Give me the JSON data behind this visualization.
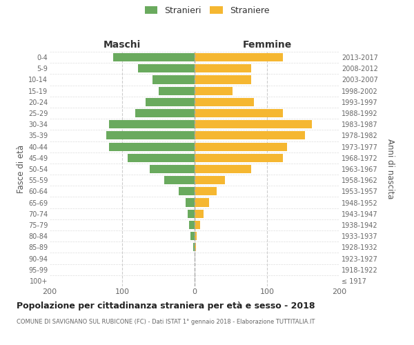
{
  "age_groups": [
    "100+",
    "95-99",
    "90-94",
    "85-89",
    "80-84",
    "75-79",
    "70-74",
    "65-69",
    "60-64",
    "55-59",
    "50-54",
    "45-49",
    "40-44",
    "35-39",
    "30-34",
    "25-29",
    "20-24",
    "15-19",
    "10-14",
    "5-9",
    "0-4"
  ],
  "birth_years": [
    "≤ 1917",
    "1918-1922",
    "1923-1927",
    "1928-1932",
    "1933-1937",
    "1938-1942",
    "1943-1947",
    "1948-1952",
    "1953-1957",
    "1958-1962",
    "1963-1967",
    "1968-1972",
    "1973-1977",
    "1978-1982",
    "1983-1987",
    "1988-1992",
    "1993-1997",
    "1998-2002",
    "2003-2007",
    "2008-2012",
    "2013-2017"
  ],
  "males": [
    0,
    0,
    0,
    2,
    6,
    8,
    10,
    12,
    22,
    42,
    62,
    92,
    118,
    122,
    118,
    82,
    68,
    50,
    58,
    78,
    112
  ],
  "females": [
    0,
    0,
    0,
    2,
    3,
    8,
    12,
    20,
    30,
    42,
    78,
    122,
    128,
    152,
    162,
    122,
    82,
    52,
    78,
    78,
    122
  ],
  "male_color": "#6aaa5e",
  "female_color": "#f5b731",
  "title": "Popolazione per cittadinanza straniera per età e sesso - 2018",
  "subtitle": "COMUNE DI SAVIGNANO SUL RUBICONE (FC) - Dati ISTAT 1° gennaio 2018 - Elaborazione TUTTITALIA.IT",
  "ylabel_left": "Fasce di età",
  "ylabel_right": "Anni di nascita",
  "maschi_label": "Maschi",
  "femmine_label": "Femmine",
  "legend_stranieri": "Stranieri",
  "legend_straniere": "Straniere",
  "xlim": 200,
  "background_color": "#ffffff",
  "grid_color": "#cccccc",
  "bar_height": 0.75
}
